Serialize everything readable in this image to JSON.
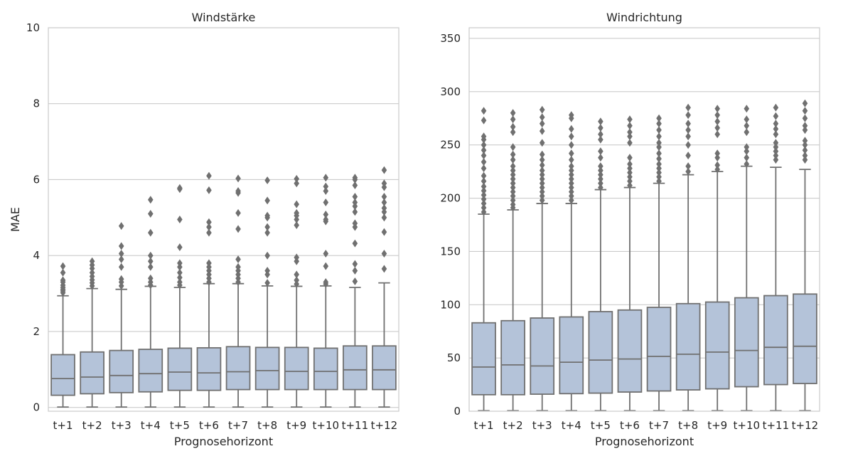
{
  "chart_data": [
    {
      "type": "box",
      "title": "Windstärke",
      "xlabel": "Prognosehorizont",
      "ylabel": "MAE",
      "ylim": [
        -0.1,
        10
      ],
      "yticks": [
        0,
        2,
        4,
        6,
        8,
        10
      ],
      "grid": true,
      "colors": {
        "box": "#b4c3d9",
        "line": "#707070"
      },
      "categories": [
        "t+1",
        "t+2",
        "t+3",
        "t+4",
        "t+5",
        "t+6",
        "t+7",
        "t+8",
        "t+9",
        "t+10",
        "t+11",
        "t+12"
      ],
      "boxes": [
        {
          "whislo": 0.01,
          "q1": 0.32,
          "med": 0.76,
          "q3": 1.39,
          "whishi": 2.94,
          "fliers": [
            3.02,
            3.07,
            3.11,
            3.16,
            3.22,
            3.3,
            3.35,
            3.55,
            3.72
          ]
        },
        {
          "whislo": 0.01,
          "q1": 0.36,
          "med": 0.8,
          "q3": 1.46,
          "whishi": 3.13,
          "fliers": [
            3.2,
            3.28,
            3.36,
            3.45,
            3.55,
            3.66,
            3.75,
            3.85
          ]
        },
        {
          "whislo": 0.01,
          "q1": 0.39,
          "med": 0.84,
          "q3": 1.5,
          "whishi": 3.11,
          "fliers": [
            3.2,
            3.3,
            3.38,
            3.7,
            3.9,
            4.05,
            4.25,
            4.78
          ]
        },
        {
          "whislo": 0.01,
          "q1": 0.41,
          "med": 0.89,
          "q3": 1.53,
          "whishi": 3.19,
          "fliers": [
            3.22,
            3.3,
            3.4,
            3.7,
            3.85,
            4.0,
            4.6,
            5.1,
            5.47
          ]
        },
        {
          "whislo": 0.01,
          "q1": 0.45,
          "med": 0.93,
          "q3": 1.56,
          "whishi": 3.16,
          "fliers": [
            3.22,
            3.3,
            3.42,
            3.55,
            3.7,
            3.8,
            4.22,
            4.95,
            5.75,
            5.78
          ]
        },
        {
          "whislo": 0.01,
          "q1": 0.45,
          "med": 0.91,
          "q3": 1.57,
          "whishi": 3.26,
          "fliers": [
            3.3,
            3.4,
            3.5,
            3.6,
            3.7,
            3.8,
            4.6,
            4.75,
            4.88,
            5.72,
            6.1
          ]
        },
        {
          "whislo": 0.01,
          "q1": 0.47,
          "med": 0.94,
          "q3": 1.6,
          "whishi": 3.26,
          "fliers": [
            3.3,
            3.4,
            3.5,
            3.6,
            3.7,
            3.9,
            4.7,
            5.12,
            5.65,
            5.7,
            6.03
          ]
        },
        {
          "whislo": 0.01,
          "q1": 0.47,
          "med": 0.97,
          "q3": 1.58,
          "whishi": 3.2,
          "fliers": [
            3.28,
            3.5,
            3.6,
            4.0,
            4.6,
            4.75,
            5.0,
            5.05,
            5.45,
            5.98
          ]
        },
        {
          "whislo": 0.01,
          "q1": 0.47,
          "med": 0.95,
          "q3": 1.58,
          "whishi": 3.19,
          "fliers": [
            3.25,
            3.35,
            3.5,
            3.85,
            3.95,
            4.8,
            4.95,
            5.05,
            5.12,
            5.35,
            5.9,
            6.02
          ]
        },
        {
          "whislo": 0.01,
          "q1": 0.47,
          "med": 0.95,
          "q3": 1.56,
          "whishi": 3.2,
          "fliers": [
            3.25,
            3.3,
            3.72,
            4.05,
            4.9,
            4.95,
            5.08,
            5.4,
            5.7,
            5.82,
            6.05
          ]
        },
        {
          "whislo": 0.01,
          "q1": 0.47,
          "med": 0.99,
          "q3": 1.62,
          "whishi": 3.16,
          "fliers": [
            3.32,
            3.6,
            3.78,
            4.32,
            4.75,
            4.85,
            5.15,
            5.3,
            5.4,
            5.55,
            5.85,
            6.0,
            6.05
          ]
        },
        {
          "whislo": 0.01,
          "q1": 0.47,
          "med": 0.99,
          "q3": 1.62,
          "whishi": 3.28,
          "fliers": [
            3.65,
            4.05,
            4.62,
            5.0,
            5.15,
            5.25,
            5.4,
            5.55,
            5.8,
            5.9,
            6.25
          ]
        }
      ]
    },
    {
      "type": "box",
      "title": "Windrichtung",
      "xlabel": "Prognosehorizont",
      "ylabel": "",
      "ylim": [
        0,
        360
      ],
      "yticks": [
        0,
        50,
        100,
        150,
        200,
        250,
        300,
        350
      ],
      "grid": true,
      "colors": {
        "box": "#b4c3d9",
        "line": "#707070"
      },
      "categories": [
        "t+1",
        "t+2",
        "t+3",
        "t+4",
        "t+5",
        "t+6",
        "t+7",
        "t+8",
        "t+9",
        "t+10",
        "t+11",
        "t+12"
      ],
      "boxes": [
        {
          "whislo": 0.5,
          "q1": 15.5,
          "med": 41.5,
          "q3": 83,
          "whishi": 185,
          "fliers": [
            187,
            191,
            195,
            199,
            203,
            207,
            211,
            216,
            221,
            228,
            234,
            240,
            245,
            250,
            255,
            258,
            273,
            282
          ]
        },
        {
          "whislo": 0.5,
          "q1": 15.5,
          "med": 43.5,
          "q3": 85,
          "whishi": 189,
          "fliers": [
            191,
            194,
            198,
            202,
            206,
            210,
            214,
            218,
            222,
            226,
            230,
            236,
            241,
            248,
            262,
            267,
            274,
            280
          ]
        },
        {
          "whislo": 0.5,
          "q1": 16,
          "med": 42.5,
          "q3": 87.5,
          "whishi": 195,
          "fliers": [
            198,
            202,
            206,
            210,
            214,
            218,
            222,
            226,
            231,
            236,
            241,
            252,
            263,
            270,
            276,
            283
          ]
        },
        {
          "whislo": 0.5,
          "q1": 16.5,
          "med": 46,
          "q3": 88.5,
          "whishi": 195,
          "fliers": [
            198,
            202,
            206,
            210,
            214,
            218,
            222,
            226,
            230,
            236,
            242,
            250,
            258,
            265,
            275,
            278
          ]
        },
        {
          "whislo": 0.5,
          "q1": 17,
          "med": 48,
          "q3": 93.5,
          "whishi": 208,
          "fliers": [
            210,
            214,
            218,
            222,
            226,
            230,
            238,
            244,
            255,
            260,
            266,
            272
          ]
        },
        {
          "whislo": 0.5,
          "q1": 18,
          "med": 49,
          "q3": 95,
          "whishi": 210,
          "fliers": [
            212,
            216,
            220,
            224,
            228,
            232,
            238,
            252,
            258,
            262,
            268,
            274
          ]
        },
        {
          "whislo": 0.5,
          "q1": 19,
          "med": 51.5,
          "q3": 97.5,
          "whishi": 214,
          "fliers": [
            216,
            220,
            224,
            228,
            232,
            237,
            242,
            248,
            252,
            258,
            264,
            270,
            275
          ]
        },
        {
          "whislo": 0.5,
          "q1": 20,
          "med": 53.5,
          "q3": 101,
          "whishi": 222,
          "fliers": [
            225,
            230,
            240,
            250,
            258,
            264,
            270,
            278,
            285
          ]
        },
        {
          "whislo": 0.5,
          "q1": 21,
          "med": 55.5,
          "q3": 102.5,
          "whishi": 225,
          "fliers": [
            227,
            231,
            238,
            242,
            260,
            266,
            272,
            278,
            284
          ]
        },
        {
          "whislo": 0.5,
          "q1": 23,
          "med": 57,
          "q3": 106.5,
          "whishi": 230,
          "fliers": [
            232,
            238,
            244,
            248,
            262,
            268,
            274,
            284
          ]
        },
        {
          "whislo": 0.5,
          "q1": 25,
          "med": 60,
          "q3": 108.5,
          "whishi": 229,
          "fliers": [
            236,
            240,
            244,
            248,
            252,
            260,
            265,
            270,
            277,
            285
          ]
        },
        {
          "whislo": 0.5,
          "q1": 26,
          "med": 61,
          "q3": 110,
          "whishi": 227,
          "fliers": [
            236,
            240,
            245,
            250,
            254,
            264,
            268,
            275,
            282,
            289
          ]
        }
      ]
    }
  ]
}
